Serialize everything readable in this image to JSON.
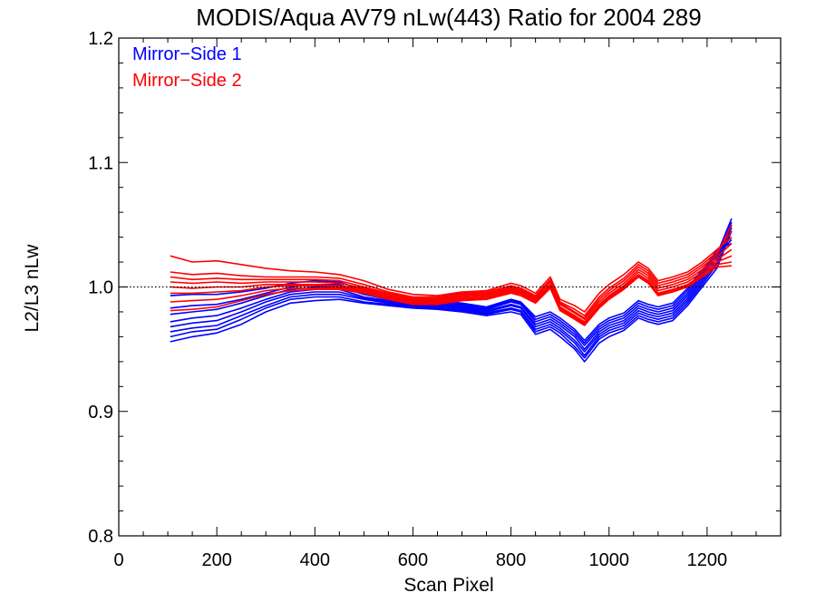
{
  "chart_data": {
    "type": "line",
    "title": "MODIS/Aqua AV79 nLw(443) Ratio for 2004 289",
    "xlabel": "Scan Pixel",
    "ylabel": "L2/L3 nLw",
    "xlim": [
      0,
      1350
    ],
    "ylim": [
      0.8,
      1.2
    ],
    "xticks": [
      0,
      200,
      400,
      600,
      800,
      1000,
      1200
    ],
    "yticks": [
      0.8,
      0.9,
      1.0,
      1.1,
      1.2
    ],
    "xtick_labels": [
      "0",
      "200",
      "400",
      "600",
      "800",
      "1000",
      "1200"
    ],
    "ytick_labels": [
      "0.8",
      "0.9",
      "1.0",
      "1.1",
      "1.2"
    ],
    "xminor_step": 50,
    "yminor_step": 0.02,
    "reference_line": {
      "y": 1.0,
      "style": "dotted",
      "color": "#000000"
    },
    "legend": {
      "placement": "top-left",
      "entries": [
        {
          "label": "Mirror−Side 1",
          "color": "#0000ff"
        },
        {
          "label": "Mirror−Side 2",
          "color": "#ff0000"
        }
      ]
    },
    "x": [
      105,
      150,
      200,
      250,
      300,
      350,
      400,
      450,
      500,
      550,
      600,
      650,
      700,
      750,
      800,
      820,
      850,
      880,
      900,
      930,
      950,
      980,
      1000,
      1030,
      1060,
      1080,
      1100,
      1130,
      1160,
      1190,
      1220,
      1250
    ],
    "series": [
      {
        "group": "Mirror−Side 1",
        "color": "#0000ff",
        "values": [
          0.956,
          0.96,
          0.963,
          0.97,
          0.98,
          0.987,
          0.989,
          0.99,
          0.987,
          0.985,
          0.983,
          0.982,
          0.98,
          0.977,
          0.98,
          0.978,
          0.962,
          0.966,
          0.96,
          0.95,
          0.94,
          0.955,
          0.96,
          0.965,
          0.975,
          0.972,
          0.97,
          0.973,
          0.985,
          1.0,
          1.015,
          1.045
        ]
      },
      {
        "group": "Mirror−Side 1",
        "color": "#0000ff",
        "values": [
          0.96,
          0.964,
          0.966,
          0.974,
          0.983,
          0.99,
          0.992,
          0.992,
          0.988,
          0.986,
          0.984,
          0.983,
          0.981,
          0.978,
          0.982,
          0.98,
          0.964,
          0.968,
          0.963,
          0.952,
          0.943,
          0.958,
          0.963,
          0.967,
          0.977,
          0.974,
          0.972,
          0.975,
          0.987,
          1.002,
          1.018,
          1.048
        ]
      },
      {
        "group": "Mirror−Side 1",
        "color": "#0000ff",
        "values": [
          0.964,
          0.967,
          0.969,
          0.977,
          0.985,
          0.992,
          0.994,
          0.994,
          0.99,
          0.987,
          0.985,
          0.984,
          0.982,
          0.979,
          0.983,
          0.981,
          0.966,
          0.97,
          0.965,
          0.955,
          0.945,
          0.96,
          0.965,
          0.969,
          0.979,
          0.976,
          0.974,
          0.977,
          0.989,
          1.004,
          1.02,
          1.05
        ]
      },
      {
        "group": "Mirror−Side 1",
        "color": "#0000ff",
        "values": [
          0.968,
          0.971,
          0.973,
          0.98,
          0.988,
          0.994,
          0.996,
          0.996,
          0.991,
          0.988,
          0.986,
          0.985,
          0.983,
          0.98,
          0.985,
          0.983,
          0.968,
          0.972,
          0.967,
          0.957,
          0.948,
          0.962,
          0.967,
          0.971,
          0.981,
          0.978,
          0.976,
          0.979,
          0.991,
          1.006,
          1.023,
          1.052
        ]
      },
      {
        "group": "Mirror−Side 1",
        "color": "#0000ff",
        "values": [
          0.972,
          0.975,
          0.977,
          0.983,
          0.99,
          0.996,
          0.998,
          0.998,
          0.992,
          0.989,
          0.987,
          0.986,
          0.984,
          0.981,
          0.986,
          0.984,
          0.97,
          0.974,
          0.969,
          0.96,
          0.95,
          0.964,
          0.969,
          0.973,
          0.983,
          0.98,
          0.978,
          0.981,
          0.993,
          1.008,
          1.026,
          1.055
        ]
      },
      {
        "group": "Mirror−Side 1",
        "color": "#0000ff",
        "values": [
          0.978,
          0.98,
          0.982,
          0.987,
          0.993,
          0.998,
          1.0,
          1.0,
          0.994,
          0.99,
          0.988,
          0.987,
          0.985,
          0.982,
          0.988,
          0.986,
          0.972,
          0.976,
          0.971,
          0.962,
          0.953,
          0.966,
          0.971,
          0.975,
          0.985,
          0.982,
          0.98,
          0.983,
          0.995,
          1.01,
          1.028,
          1.04
        ]
      },
      {
        "group": "Mirror−Side 1",
        "color": "#0000ff",
        "values": [
          0.983,
          0.985,
          0.986,
          0.99,
          0.995,
          1.0,
          1.002,
          1.002,
          0.995,
          0.991,
          0.989,
          0.988,
          0.986,
          0.983,
          0.989,
          0.987,
          0.974,
          0.978,
          0.973,
          0.964,
          0.955,
          0.968,
          0.973,
          0.977,
          0.987,
          0.984,
          0.982,
          0.985,
          0.997,
          1.012,
          1.03,
          1.035
        ]
      },
      {
        "group": "Mirror−Side 1",
        "color": "#0000ff",
        "values": [
          0.993,
          0.994,
          0.994,
          0.996,
          0.999,
          1.003,
          1.005,
          1.004,
          0.997,
          0.992,
          0.99,
          0.989,
          0.987,
          0.984,
          0.99,
          0.988,
          0.976,
          0.98,
          0.975,
          0.966,
          0.957,
          0.97,
          0.975,
          0.979,
          0.989,
          0.986,
          0.984,
          0.987,
          0.999,
          1.014,
          1.025,
          1.038
        ]
      },
      {
        "group": "Mirror−Side 2",
        "color": "#ff0000",
        "values": [
          1.025,
          1.02,
          1.021,
          1.018,
          1.015,
          1.013,
          1.012,
          1.01,
          1.005,
          0.998,
          0.994,
          0.993,
          0.996,
          0.997,
          1.003,
          1.001,
          0.995,
          1.008,
          0.99,
          0.985,
          0.98,
          0.995,
          1.002,
          1.01,
          1.02,
          1.015,
          1.005,
          1.008,
          1.012,
          1.02,
          1.03,
          1.04
        ]
      },
      {
        "group": "Mirror−Side 2",
        "color": "#ff0000",
        "values": [
          1.012,
          1.01,
          1.011,
          1.009,
          1.008,
          1.008,
          1.008,
          1.007,
          1.002,
          0.996,
          0.992,
          0.992,
          0.995,
          0.996,
          1.001,
          0.999,
          0.993,
          1.006,
          0.988,
          0.982,
          0.977,
          0.992,
          0.999,
          1.007,
          1.018,
          1.013,
          1.003,
          1.006,
          1.01,
          1.018,
          1.028,
          1.045
        ]
      },
      {
        "group": "Mirror−Side 2",
        "color": "#ff0000",
        "values": [
          1.008,
          1.006,
          1.007,
          1.006,
          1.006,
          1.006,
          1.006,
          1.005,
          1.0,
          0.995,
          0.991,
          0.991,
          0.994,
          0.995,
          1.0,
          0.998,
          0.992,
          1.005,
          0.987,
          0.98,
          0.975,
          0.99,
          0.997,
          1.005,
          1.016,
          1.011,
          1.001,
          1.004,
          1.008,
          1.016,
          1.026,
          1.05
        ]
      },
      {
        "group": "Mirror−Side 2",
        "color": "#ff0000",
        "values": [
          1.004,
          1.003,
          1.004,
          1.003,
          1.004,
          1.004,
          1.004,
          1.003,
          0.999,
          0.994,
          0.99,
          0.99,
          0.993,
          0.994,
          0.999,
          0.997,
          0.991,
          1.004,
          0.986,
          0.979,
          0.974,
          0.988,
          0.995,
          1.003,
          1.014,
          1.009,
          0.999,
          1.002,
          1.006,
          1.014,
          1.024,
          1.035
        ]
      },
      {
        "group": "Mirror−Side 2",
        "color": "#ff0000",
        "values": [
          1.0,
          0.999,
          1.0,
          1.0,
          1.002,
          1.002,
          1.002,
          1.001,
          0.998,
          0.993,
          0.989,
          0.989,
          0.992,
          0.993,
          0.998,
          0.996,
          0.99,
          1.002,
          0.984,
          0.977,
          0.972,
          0.986,
          0.993,
          1.001,
          1.012,
          1.007,
          0.997,
          1.0,
          1.004,
          1.012,
          1.022,
          1.03
        ]
      },
      {
        "group": "Mirror−Side 2",
        "color": "#ff0000",
        "values": [
          0.995,
          0.995,
          0.996,
          0.997,
          1.0,
          1.001,
          1.001,
          1.0,
          0.997,
          0.992,
          0.988,
          0.988,
          0.991,
          0.992,
          0.997,
          0.995,
          0.989,
          1.001,
          0.983,
          0.976,
          0.971,
          0.985,
          0.992,
          1.0,
          1.01,
          1.005,
          0.995,
          0.998,
          1.002,
          1.01,
          1.02,
          1.025
        ]
      },
      {
        "group": "Mirror−Side 2",
        "color": "#ff0000",
        "values": [
          0.988,
          0.989,
          0.99,
          0.993,
          0.997,
          0.999,
          0.999,
          0.999,
          0.996,
          0.991,
          0.987,
          0.987,
          0.99,
          0.991,
          0.996,
          0.994,
          0.988,
          1.0,
          0.982,
          0.975,
          0.97,
          0.984,
          0.991,
          0.999,
          1.009,
          1.004,
          0.994,
          0.997,
          1.001,
          1.009,
          1.018,
          1.02
        ]
      },
      {
        "group": "Mirror−Side 2",
        "color": "#ff0000",
        "values": [
          0.981,
          0.982,
          0.984,
          0.989,
          0.994,
          0.997,
          0.998,
          0.998,
          0.995,
          0.99,
          0.986,
          0.986,
          0.989,
          0.99,
          0.995,
          0.993,
          0.987,
          0.999,
          0.981,
          0.974,
          0.969,
          0.983,
          0.99,
          0.998,
          1.008,
          1.003,
          0.993,
          0.996,
          1.0,
          1.008,
          1.016,
          1.017
        ]
      }
    ]
  }
}
